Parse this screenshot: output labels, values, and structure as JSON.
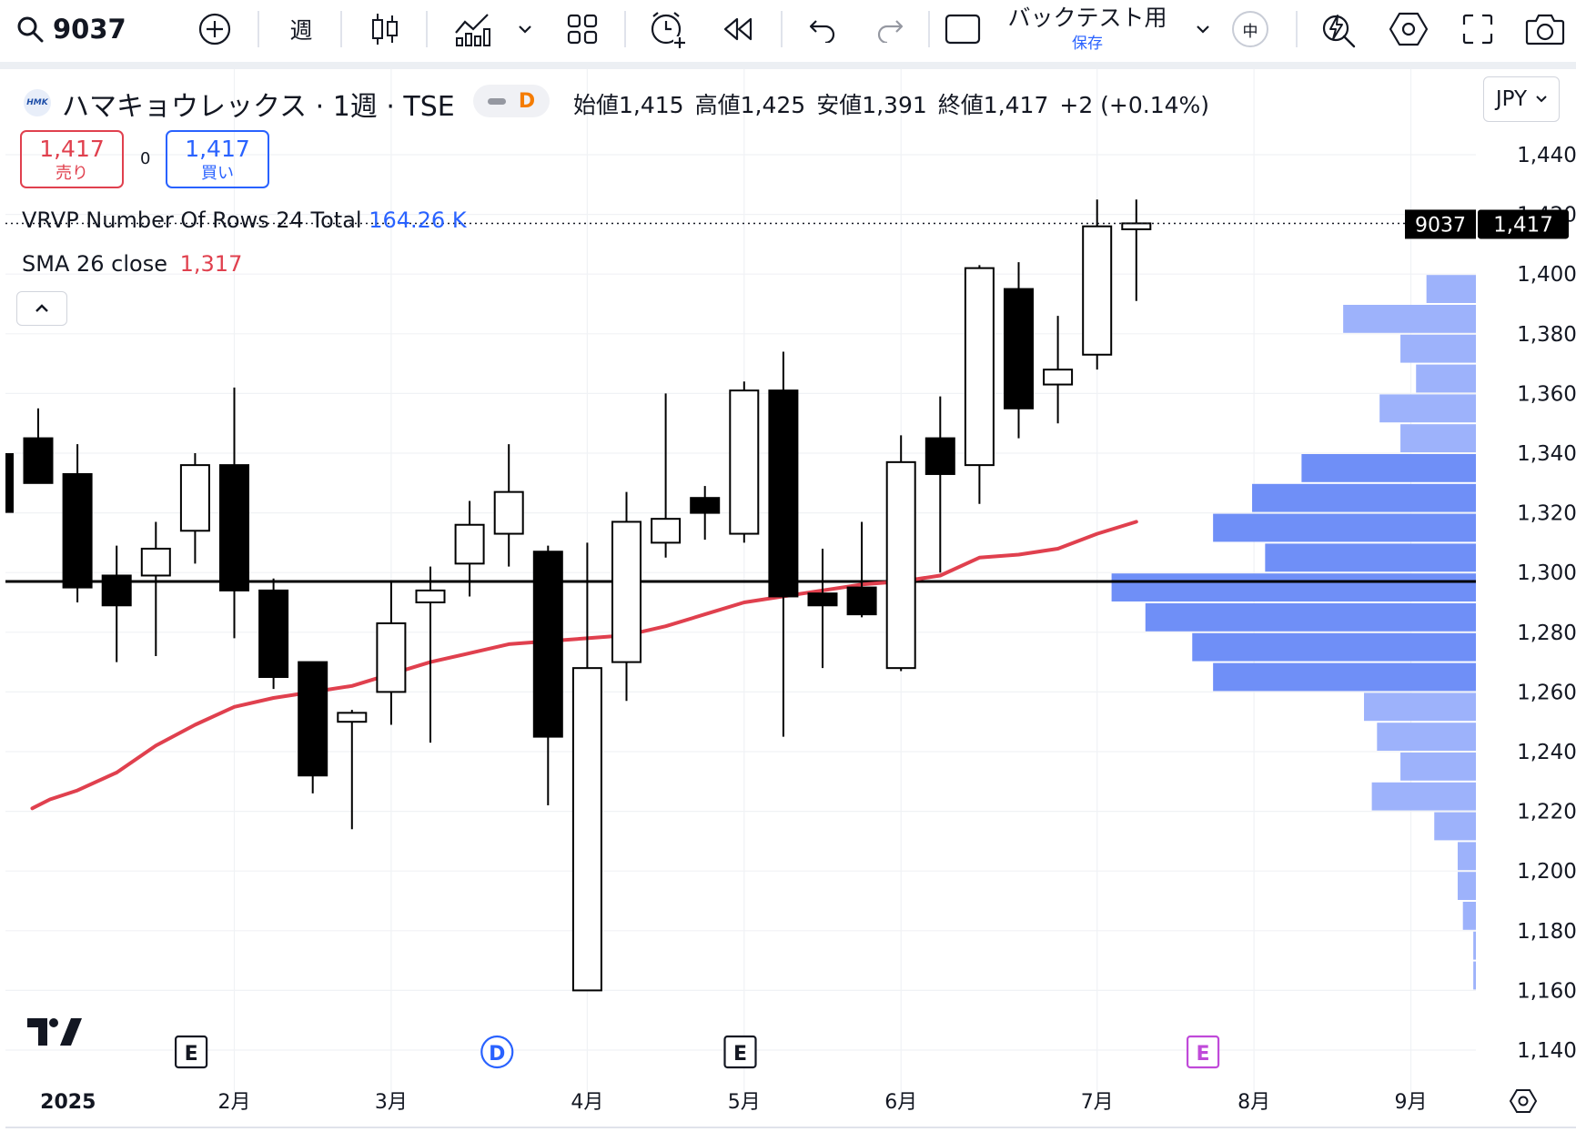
{
  "toolbar": {
    "symbol": "9037",
    "interval": "週",
    "layout_name": "バックテスト用",
    "layout_status": "保存",
    "mid_badge": "中"
  },
  "legend": {
    "title": "ハマキョウレックス · 1週 · TSE",
    "logo_text": "HMK",
    "delay_badge": "D",
    "ohlc": {
      "open_label": "始値",
      "open": "1,415",
      "high_label": "高値",
      "high": "1,425",
      "low_label": "安値",
      "low": "1,391",
      "close_label": "終値",
      "close": "1,417",
      "change": "+2 (+0.14%)"
    },
    "sell_price": "1,417",
    "sell_label": "売り",
    "spread": "0",
    "buy_price": "1,417",
    "buy_label": "買い",
    "vrvp_label": "VRVP Number Of Rows 24 Total",
    "vrvp_total": "164.26 K",
    "sma_label": "SMA 26 close",
    "sma_value": "1,317"
  },
  "currency": "JPY",
  "price_tags": {
    "symbol_tag": "9037",
    "last_price": "1,417"
  },
  "colors": {
    "sma_line": "#e0404e",
    "vrvp_light": "#9db2fb",
    "vrvp_dark": "#6f8ff7",
    "up_body": "#ffffff",
    "down_body": "#000000",
    "earnings_event": "#131722",
    "dividend_event": "#2962ff",
    "upcoming_event": "#c04ad9"
  },
  "chart_data": {
    "type": "candlestick",
    "symbol": "9037",
    "interval": "1週",
    "ylim": [
      1135,
      1450
    ],
    "y_ticks": [
      1440,
      1420,
      1400,
      1380,
      1360,
      1340,
      1320,
      1300,
      1280,
      1260,
      1240,
      1220,
      1200,
      1180,
      1160,
      1140
    ],
    "y_tick_labels": [
      "1,440",
      "1,420",
      "1,400",
      "1,380",
      "1,360",
      "1,340",
      "1,320",
      "1,300",
      "1,280",
      "1,260",
      "1,240",
      "1,220",
      "1,200",
      "1,180",
      "1,160",
      "1,140"
    ],
    "x_labels": [
      {
        "label": "2025",
        "week": 0.7,
        "bold": true
      },
      {
        "label": "2月",
        "week": 5
      },
      {
        "label": "3月",
        "week": 9
      },
      {
        "label": "4月",
        "week": 14
      },
      {
        "label": "5月",
        "week": 18
      },
      {
        "label": "6月",
        "week": 22
      },
      {
        "label": "7月",
        "week": 27
      },
      {
        "label": "8月",
        "week": 31
      },
      {
        "label": "9月",
        "week": 35
      }
    ],
    "horizontal_line": 1297,
    "last_price": 1417,
    "candles": [
      {
        "week": 0,
        "o": 1345,
        "h": 1355,
        "l": 1330,
        "c": 1330
      },
      {
        "week": 1,
        "o": 1333,
        "h": 1343,
        "l": 1290,
        "c": 1295
      },
      {
        "week": 2,
        "o": 1299,
        "h": 1309,
        "l": 1270,
        "c": 1289
      },
      {
        "week": 3,
        "o": 1299,
        "h": 1317,
        "l": 1272,
        "c": 1308
      },
      {
        "week": 4,
        "o": 1314,
        "h": 1340,
        "l": 1303,
        "c": 1336
      },
      {
        "week": 5,
        "o": 1336,
        "h": 1362,
        "l": 1278,
        "c": 1294
      },
      {
        "week": 6,
        "o": 1294,
        "h": 1298,
        "l": 1261,
        "c": 1265
      },
      {
        "week": 7,
        "o": 1270,
        "h": 1270,
        "l": 1226,
        "c": 1232
      },
      {
        "week": 8,
        "o": 1250,
        "h": 1254,
        "l": 1214,
        "c": 1253
      },
      {
        "week": 9,
        "o": 1260,
        "h": 1297,
        "l": 1249,
        "c": 1283
      },
      {
        "week": 10,
        "o": 1290,
        "h": 1302,
        "l": 1243,
        "c": 1294
      },
      {
        "week": 11,
        "o": 1303,
        "h": 1324,
        "l": 1292,
        "c": 1316
      },
      {
        "week": 12,
        "o": 1313,
        "h": 1343,
        "l": 1302,
        "c": 1327
      },
      {
        "week": 13,
        "o": 1307,
        "h": 1309,
        "l": 1222,
        "c": 1245
      },
      {
        "week": 14,
        "o": 1160,
        "h": 1310,
        "l": 1160,
        "c": 1268
      },
      {
        "week": 15,
        "o": 1270,
        "h": 1327,
        "l": 1257,
        "c": 1317
      },
      {
        "week": 16,
        "o": 1310,
        "h": 1360,
        "l": 1305,
        "c": 1318
      },
      {
        "week": 17,
        "o": 1325,
        "h": 1329,
        "l": 1311,
        "c": 1320
      },
      {
        "week": 18,
        "o": 1313,
        "h": 1364,
        "l": 1310,
        "c": 1361
      },
      {
        "week": 19,
        "o": 1361,
        "h": 1374,
        "l": 1245,
        "c": 1292
      },
      {
        "week": 20,
        "o": 1293,
        "h": 1308,
        "l": 1268,
        "c": 1289
      },
      {
        "week": 21,
        "o": 1295,
        "h": 1317,
        "l": 1285,
        "c": 1286
      },
      {
        "week": 22,
        "o": 1268,
        "h": 1346,
        "l": 1267,
        "c": 1337
      },
      {
        "week": 23,
        "o": 1345,
        "h": 1359,
        "l": 1300,
        "c": 1333
      },
      {
        "week": 24,
        "o": 1336,
        "h": 1403,
        "l": 1323,
        "c": 1402
      },
      {
        "week": 25,
        "o": 1395,
        "h": 1404,
        "l": 1345,
        "c": 1355
      },
      {
        "week": 26,
        "o": 1363,
        "h": 1386,
        "l": 1350,
        "c": 1368
      },
      {
        "week": 27,
        "o": 1373,
        "h": 1425,
        "l": 1368,
        "c": 1416
      },
      {
        "week": 28,
        "o": 1415,
        "h": 1425,
        "l": 1391,
        "c": 1417
      }
    ],
    "sma": {
      "name": "SMA 26 close",
      "points": [
        {
          "week": -0.15,
          "v": 1221
        },
        {
          "week": 0.3,
          "v": 1224
        },
        {
          "week": 1,
          "v": 1227
        },
        {
          "week": 2,
          "v": 1233
        },
        {
          "week": 3,
          "v": 1242
        },
        {
          "week": 4,
          "v": 1249
        },
        {
          "week": 5,
          "v": 1255
        },
        {
          "week": 6,
          "v": 1258
        },
        {
          "week": 7,
          "v": 1260
        },
        {
          "week": 8,
          "v": 1262
        },
        {
          "week": 9,
          "v": 1266
        },
        {
          "week": 10,
          "v": 1270
        },
        {
          "week": 11,
          "v": 1273
        },
        {
          "week": 12,
          "v": 1276
        },
        {
          "week": 13,
          "v": 1277
        },
        {
          "week": 14,
          "v": 1278
        },
        {
          "week": 15,
          "v": 1279
        },
        {
          "week": 16,
          "v": 1282
        },
        {
          "week": 17,
          "v": 1286
        },
        {
          "week": 18,
          "v": 1290
        },
        {
          "week": 19,
          "v": 1292
        },
        {
          "week": 20,
          "v": 1294
        },
        {
          "week": 21,
          "v": 1296
        },
        {
          "week": 22,
          "v": 1297
        },
        {
          "week": 23,
          "v": 1299
        },
        {
          "week": 24,
          "v": 1305
        },
        {
          "week": 25,
          "v": 1306
        },
        {
          "week": 26,
          "v": 1308
        },
        {
          "week": 27,
          "v": 1313
        },
        {
          "week": 28,
          "v": 1317
        }
      ]
    },
    "volume_profile": {
      "rows": [
        {
          "low": 1160,
          "high": 1170,
          "volume": 0.01
        },
        {
          "low": 1170,
          "high": 1180,
          "volume": 0.01
        },
        {
          "low": 1180,
          "high": 1190,
          "volume": 0.05
        },
        {
          "low": 1190,
          "high": 1200,
          "volume": 0.07
        },
        {
          "low": 1200,
          "high": 1210,
          "volume": 0.07
        },
        {
          "low": 1210,
          "high": 1220,
          "volume": 0.16
        },
        {
          "low": 1220,
          "high": 1230,
          "volume": 0.4
        },
        {
          "low": 1230,
          "high": 1240,
          "volume": 0.29
        },
        {
          "low": 1240,
          "high": 1250,
          "volume": 0.38
        },
        {
          "low": 1250,
          "high": 1260,
          "volume": 0.43
        },
        {
          "low": 1260,
          "high": 1270,
          "volume": 1.01,
          "in_value_area": true
        },
        {
          "low": 1270,
          "high": 1280,
          "volume": 1.09,
          "in_value_area": true
        },
        {
          "low": 1280,
          "high": 1290,
          "volume": 1.27,
          "in_value_area": true
        },
        {
          "low": 1290,
          "high": 1300,
          "volume": 1.4,
          "in_value_area": true
        },
        {
          "low": 1300,
          "high": 1310,
          "volume": 0.81,
          "in_value_area": true
        },
        {
          "low": 1310,
          "high": 1320,
          "volume": 1.01,
          "in_value_area": true
        },
        {
          "low": 1320,
          "high": 1330,
          "volume": 0.86,
          "in_value_area": true
        },
        {
          "low": 1330,
          "high": 1340,
          "volume": 0.67,
          "in_value_area": true
        },
        {
          "low": 1340,
          "high": 1350,
          "volume": 0.29
        },
        {
          "low": 1350,
          "high": 1360,
          "volume": 0.37
        },
        {
          "low": 1360,
          "high": 1370,
          "volume": 0.23
        },
        {
          "low": 1370,
          "high": 1380,
          "volume": 0.29
        },
        {
          "low": 1380,
          "high": 1390,
          "volume": 0.51
        },
        {
          "low": 1390,
          "high": 1400,
          "volume": 0.19
        }
      ]
    },
    "events": [
      {
        "type": "earnings",
        "label": "E",
        "week": 3.9
      },
      {
        "type": "dividend",
        "label": "D",
        "week": 11.7
      },
      {
        "type": "earnings",
        "label": "E",
        "week": 17.9
      },
      {
        "type": "upcoming_earnings",
        "label": "E",
        "week": 29.7
      }
    ]
  }
}
